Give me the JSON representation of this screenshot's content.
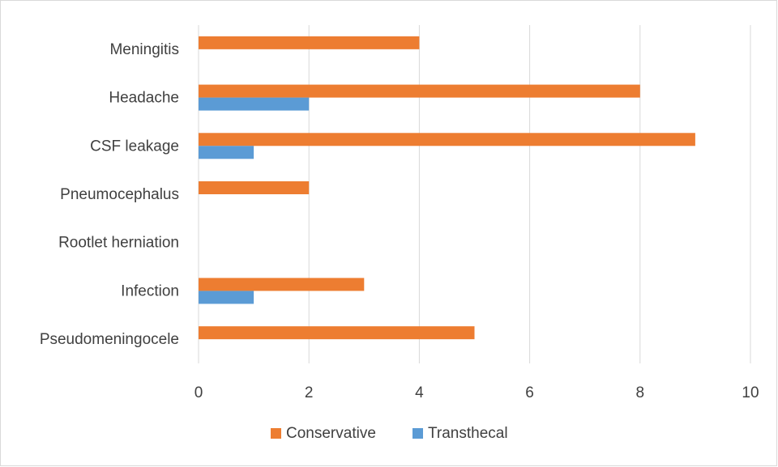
{
  "chart_data": {
    "type": "bar",
    "orientation": "horizontal",
    "categories": [
      "Meningitis",
      "Headache",
      "CSF leakage",
      "Pneumocephalus",
      "Rootlet herniation",
      "Infection",
      "Pseudomeningocele"
    ],
    "series": [
      {
        "name": "Conservative",
        "color": "#ED7D31",
        "values": [
          4,
          8,
          9,
          2,
          0,
          3,
          5
        ]
      },
      {
        "name": "Transthecal",
        "color": "#5B9BD5",
        "values": [
          0,
          2,
          1,
          0,
          0,
          1,
          0
        ]
      }
    ],
    "xticks": [
      0,
      2,
      4,
      6,
      8,
      10
    ],
    "xlim": [
      0,
      10
    ],
    "grid": true,
    "legend": "bottom",
    "title": "",
    "xlabel": "",
    "ylabel": ""
  }
}
